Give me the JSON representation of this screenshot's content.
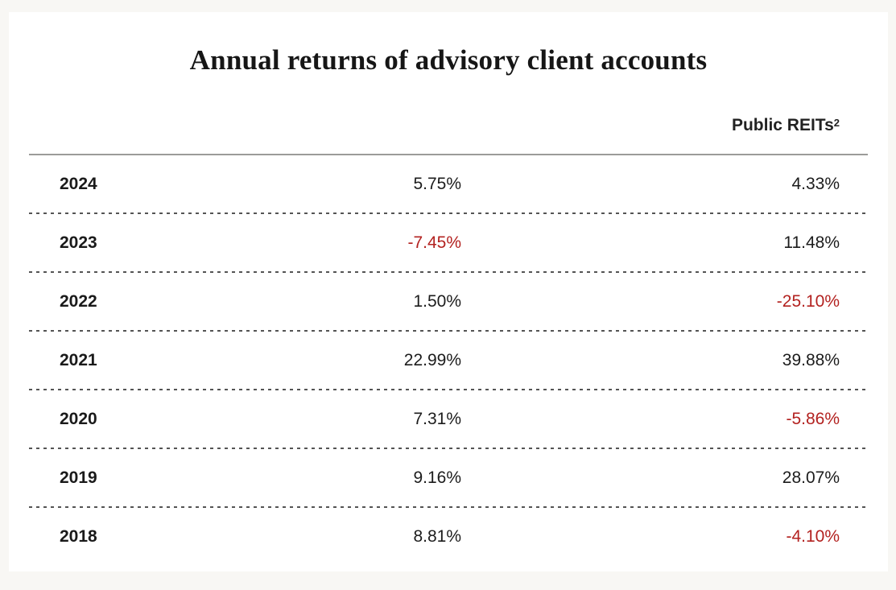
{
  "title": "Annual returns of advisory client accounts",
  "colors": {
    "page_background": "#f8f7f4",
    "card_background": "#ffffff",
    "text": "#1c1c1c",
    "negative_value": "#b32220",
    "header_rule": "#9b9b99",
    "row_rule_dashed": "#545454"
  },
  "chart_data": {
    "type": "table",
    "title": "Annual returns of advisory client accounts",
    "columns": [
      {
        "label": ""
      },
      {
        "label": ""
      },
      {
        "label": "Public REITs",
        "superscript": "2"
      }
    ],
    "rows": [
      {
        "year": "2024",
        "advisory_return": "5.75%",
        "public_reits_return": "4.33%"
      },
      {
        "year": "2023",
        "advisory_return": "-7.45%",
        "public_reits_return": "11.48%"
      },
      {
        "year": "2022",
        "advisory_return": "1.50%",
        "public_reits_return": "-25.10%"
      },
      {
        "year": "2021",
        "advisory_return": "22.99%",
        "public_reits_return": "39.88%"
      },
      {
        "year": "2020",
        "advisory_return": "7.31%",
        "public_reits_return": "-5.86%"
      },
      {
        "year": "2019",
        "advisory_return": "9.16%",
        "public_reits_return": "28.07%"
      },
      {
        "year": "2018",
        "advisory_return": "8.81%",
        "public_reits_return": "-4.10%"
      }
    ],
    "notes": "Negative values rendered in red. Years column bold. Middle and right columns right-aligned. Dashed separators between rows, solid rule under header."
  }
}
